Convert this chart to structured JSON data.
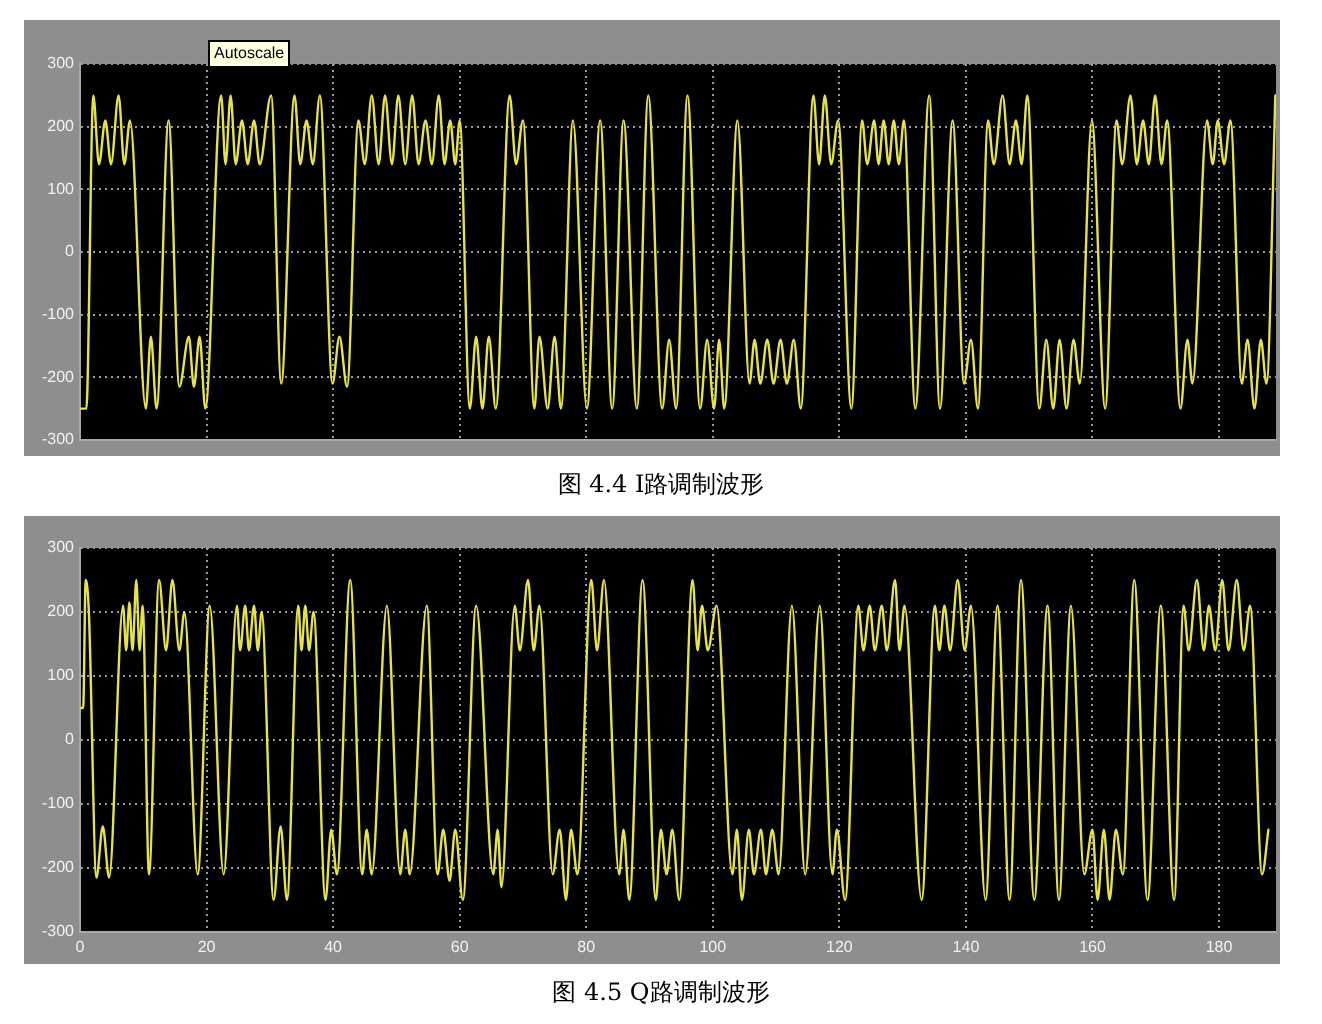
{
  "chart_data": [
    {
      "type": "line",
      "title": "图 4.4 I路调制波形",
      "annotations": [
        "Autoscale"
      ],
      "color": "#e6e34a",
      "x": [
        0,
        1.0,
        2.1,
        3.0,
        4.0,
        4.9,
        6.1,
        7.0,
        7.9,
        10.4,
        11.2,
        12.1,
        14.0,
        15.7,
        17.2,
        18.0,
        18.9,
        19.8,
        22.3,
        23.0,
        23.8,
        24.6,
        25.6,
        26.5,
        27.5,
        28.4,
        30.2,
        31.8,
        33.9,
        34.8,
        35.8,
        36.8,
        37.9,
        39.9,
        41.0,
        42.2,
        44.0,
        45.0,
        46.1,
        47.2,
        48.2,
        49.3,
        50.3,
        51.4,
        52.5,
        53.5,
        54.6,
        55.6,
        56.7,
        57.6,
        58.5,
        59.3,
        60.0,
        61.6,
        62.6,
        63.6,
        64.6,
        65.7,
        67.9,
        68.9,
        70.0,
        71.8,
        72.6,
        73.9,
        75.0,
        76.0,
        77.9,
        80.1,
        82.2,
        84.1,
        85.9,
        88.0,
        89.8,
        92.0,
        93.1,
        94.2,
        96.0,
        98.0,
        99.1,
        100.2,
        101.0,
        101.8,
        103.9,
        105.8,
        106.6,
        107.5,
        108.6,
        109.6,
        110.7,
        111.7,
        112.8,
        113.9,
        115.9,
        116.8,
        117.7,
        118.7,
        119.8,
        121.9,
        123.6,
        124.4,
        125.5,
        126.2,
        127.0,
        127.8,
        128.6,
        129.4,
        130.2,
        132.0,
        134.2,
        135.9,
        137.9,
        139.7,
        140.8,
        141.9,
        143.5,
        144.4,
        145.8,
        146.9,
        147.9,
        148.8,
        149.7,
        151.6,
        152.7,
        153.8,
        154.8,
        155.9,
        157.0,
        158.0,
        159.9,
        162.0,
        163.8,
        164.7,
        166.0,
        167.0,
        168.0,
        168.9,
        169.9,
        170.9,
        171.8,
        173.9,
        175.0,
        175.8,
        178.1,
        179.0,
        179.8,
        180.8,
        181.8,
        183.6,
        184.5,
        185.6,
        186.6,
        187.5,
        188.9
      ],
      "values": [
        -250,
        -250,
        250,
        140,
        210,
        140,
        250,
        140,
        210,
        -250,
        -135,
        -250,
        210,
        -215,
        -135,
        -215,
        -135,
        -250,
        250,
        140,
        250,
        140,
        210,
        140,
        210,
        140,
        250,
        -210,
        250,
        140,
        210,
        140,
        250,
        -210,
        -135,
        -215,
        210,
        140,
        250,
        140,
        250,
        140,
        250,
        140,
        250,
        140,
        210,
        140,
        250,
        140,
        210,
        140,
        210,
        -250,
        -135,
        -250,
        -135,
        -250,
        250,
        140,
        210,
        -250,
        -135,
        -250,
        -135,
        -250,
        210,
        -250,
        210,
        -250,
        210,
        -250,
        250,
        -250,
        -140,
        -250,
        250,
        -250,
        -140,
        -250,
        -140,
        -250,
        210,
        -210,
        -140,
        -210,
        -140,
        -210,
        -140,
        -210,
        -140,
        -250,
        250,
        140,
        250,
        140,
        210,
        -250,
        210,
        140,
        210,
        140,
        210,
        140,
        210,
        140,
        210,
        -250,
        250,
        -250,
        210,
        -210,
        -140,
        -250,
        210,
        140,
        250,
        140,
        210,
        140,
        250,
        -250,
        -140,
        -250,
        -140,
        -250,
        -140,
        -210,
        210,
        -250,
        210,
        140,
        250,
        140,
        210,
        140,
        250,
        140,
        210,
        -250,
        -140,
        -210,
        210,
        140,
        210,
        140,
        210,
        -210,
        -140,
        -250,
        -140,
        -210,
        250
      ],
      "xlim": [
        0,
        189
      ],
      "xticks": [
        0,
        20,
        40,
        60,
        80,
        100,
        120,
        140,
        160,
        180
      ],
      "ylim": [
        -300,
        300
      ],
      "yticks": [
        -300,
        -200,
        -100,
        0,
        100,
        200,
        300
      ],
      "grid": true,
      "tick_labels": "y"
    },
    {
      "type": "line",
      "title": "图 4.5 Q路调制波形",
      "color": "#e6e34a",
      "x": [
        0,
        0.5,
        0.9,
        1.4,
        2.6,
        3.6,
        4.6,
        6.8,
        7.3,
        7.8,
        8.3,
        8.9,
        9.4,
        9.9,
        10.9,
        12.5,
        13.6,
        14.6,
        15.7,
        16.5,
        18.6,
        20.5,
        22.7,
        24.8,
        25.3,
        26.1,
        26.7,
        27.5,
        28.1,
        28.7,
        30.6,
        31.7,
        32.7,
        34.5,
        35.0,
        35.6,
        36.2,
        36.9,
        38.8,
        39.7,
        40.6,
        42.7,
        44.6,
        45.3,
        46.1,
        48.5,
        50.6,
        51.4,
        52.1,
        54.8,
        56.5,
        57.4,
        58.4,
        59.3,
        60.5,
        62.6,
        65.3,
        66.0,
        66.6,
        68.7,
        69.5,
        70.8,
        71.7,
        72.6,
        74.7,
        75.8,
        76.8,
        77.6,
        78.6,
        80.8,
        81.7,
        82.8,
        85.2,
        85.9,
        86.8,
        88.9,
        91.0,
        91.8,
        92.7,
        93.6,
        94.7,
        96.8,
        97.6,
        98.3,
        99.2,
        100.6,
        103.1,
        103.8,
        104.6,
        105.7,
        106.5,
        107.6,
        108.4,
        109.4,
        110.4,
        112.5,
        114.6,
        116.9,
        118.9,
        119.6,
        120.9,
        123.0,
        123.8,
        124.8,
        125.6,
        126.7,
        127.5,
        128.8,
        129.5,
        130.3,
        133.0,
        135.1,
        135.8,
        136.6,
        137.5,
        138.7,
        139.8,
        140.8,
        143.1,
        145.0,
        146.9,
        148.7,
        150.8,
        152.9,
        154.7,
        156.6,
        158.7,
        160.0,
        160.8,
        161.8,
        162.7,
        163.7,
        164.8,
        166.6,
        168.7,
        170.8,
        172.9,
        174.4,
        175.2,
        176.5,
        177.6,
        178.4,
        179.4,
        180.5,
        181.5,
        182.8,
        183.9,
        184.9,
        186.8,
        187.8
      ],
      "values": [
        50,
        50,
        250,
        200,
        -215,
        -135,
        -215,
        210,
        140,
        215,
        140,
        250,
        140,
        210,
        -210,
        250,
        140,
        250,
        140,
        200,
        -210,
        210,
        -210,
        210,
        140,
        210,
        140,
        210,
        140,
        200,
        -250,
        -135,
        -250,
        210,
        140,
        210,
        140,
        200,
        -250,
        -140,
        -210,
        250,
        -210,
        -140,
        -210,
        210,
        -210,
        -140,
        -210,
        210,
        -210,
        -140,
        -220,
        -140,
        -250,
        210,
        -210,
        -140,
        -230,
        210,
        140,
        250,
        140,
        210,
        -210,
        -140,
        -250,
        -140,
        -210,
        250,
        140,
        250,
        -210,
        -140,
        -250,
        250,
        -250,
        -140,
        -210,
        -140,
        -250,
        250,
        140,
        210,
        140,
        210,
        -210,
        -140,
        -250,
        -140,
        -210,
        -140,
        -210,
        -140,
        -210,
        210,
        -210,
        210,
        -210,
        -140,
        -250,
        210,
        140,
        210,
        140,
        210,
        140,
        250,
        140,
        210,
        -250,
        210,
        140,
        210,
        140,
        250,
        140,
        210,
        -250,
        210,
        -250,
        250,
        -250,
        210,
        -250,
        210,
        -210,
        -140,
        -250,
        -140,
        -250,
        -140,
        -210,
        250,
        -250,
        210,
        -250,
        210,
        140,
        250,
        140,
        210,
        140,
        250,
        140,
        250,
        140,
        210,
        -210,
        -140
      ],
      "xlim": [
        0,
        189
      ],
      "xticks": [
        0,
        20,
        40,
        60,
        80,
        100,
        120,
        140,
        160,
        180
      ],
      "ylim": [
        -300,
        300
      ],
      "yticks": [
        -300,
        -200,
        -100,
        0,
        100,
        200,
        300
      ],
      "grid": true
    }
  ]
}
